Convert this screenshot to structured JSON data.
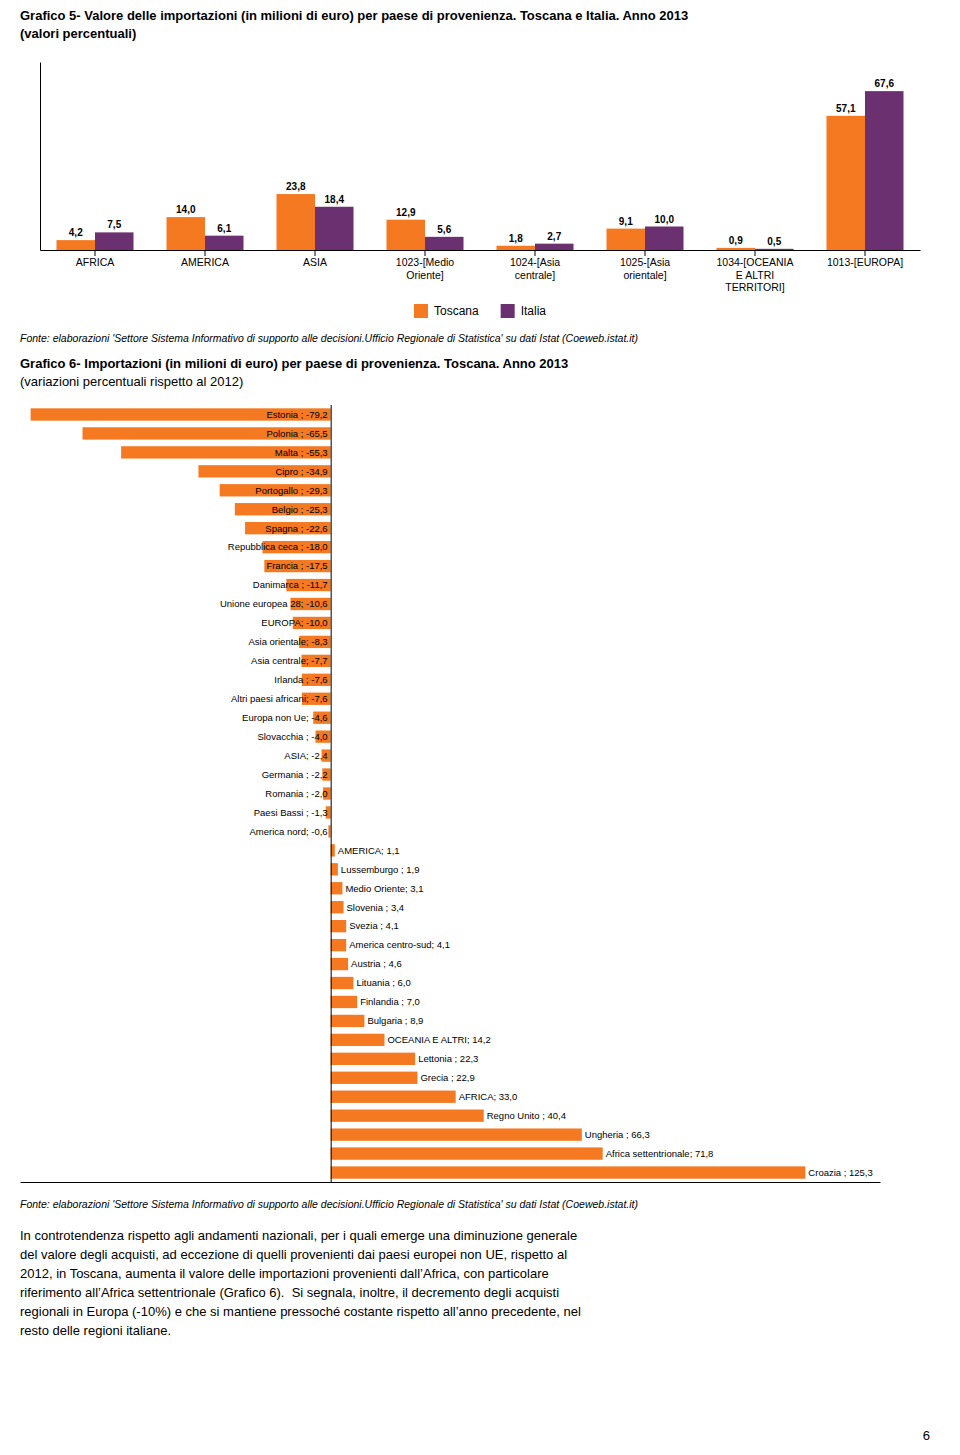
{
  "chart_data": [
    {
      "type": "bar",
      "title": "Grafico 5- Valore delle importazioni (in milioni di euro) per paese di provenienza. Toscana e Italia. Anno 2013",
      "subtitle": "(valori percentuali)",
      "categories": [
        "AFRICA",
        "AMERICA",
        "ASIA",
        "1023-[Medio\nOriente]",
        "1024-[Asia\ncentrale]",
        "1025-[Asia\norientale]",
        "1034-[OCEANIA\nE ALTRI\nTERRITORI]",
        "1013-[EUROPA]"
      ],
      "series": [
        {
          "name": "Toscana",
          "color": "#F47920",
          "values": [
            4.2,
            14.0,
            23.8,
            12.9,
            1.8,
            9.1,
            0.9,
            57.1
          ],
          "value_labels": [
            "4,2",
            "14,0",
            "23,8",
            "12,9",
            "1,8",
            "9,1",
            "0,9",
            "57,1"
          ]
        },
        {
          "name": "Italia",
          "color": "#6B3070",
          "values": [
            7.5,
            6.1,
            18.4,
            5.6,
            2.7,
            10.0,
            0.5,
            67.6
          ],
          "value_labels": [
            "7,5",
            "6,1",
            "18,4",
            "5,6",
            "2,7",
            "10,0",
            "0,5",
            "67,6"
          ]
        }
      ],
      "ylim": [
        0,
        80
      ],
      "tick_labels": "x",
      "data_labels": true,
      "legend": "bottom",
      "grid": false,
      "annotations": [
        "Fonte: elaborazioni 'Settore Sistema Informativo di supporto alle decisioni.Ufficio Regionale di Statistica' su dati Istat (Coeweb.istat.it)"
      ]
    },
    {
      "type": "bar",
      "orientation": "horizontal",
      "title": "Grafico 6- Importazioni (in milioni di euro) per paese di provenienza. Toscana. Anno 2013",
      "subtitle": "(variazioni percentuali rispetto al 2012)",
      "categories": [
        "Estonia ; -79,2",
        "Polonia ; -65,5",
        "Malta ; -55,3",
        "Cipro ; -34,9",
        "Portogallo ; -29,3",
        "Belgio ; -25,3",
        "Spagna ; -22,6",
        "Repubblica ceca ; -18,0",
        "Francia ; -17,5",
        "Danimarca ; -11,7",
        "Unione europea 28; -10,6",
        "EUROPA; -10,0",
        "Asia orientale; -8,3",
        "Asia centrale; -7,7",
        "Irlanda ; -7,6",
        "Altri paesi africani; -7,6",
        "Europa non Ue; -4,6",
        "Slovacchia ; -4,0",
        "ASIA; -2,4",
        "Germania ; -2,2",
        "Romania ; -2,0",
        "Paesi Bassi ; -1,3",
        "America nord; -0,6",
        "AMERICA; 1,1",
        "Lussemburgo ; 1,9",
        "Medio Oriente; 3,1",
        "Slovenia ; 3,4",
        "Svezia ; 4,1",
        "America centro-sud; 4,1",
        "Austria ; 4,6",
        "Lituania ; 6,0",
        "Finlandia ; 7,0",
        "Bulgaria ; 8,9",
        "OCEANIA E ALTRI; 14,2",
        "Lettonia ; 22,3",
        "Grecia ; 22,9",
        "AFRICA; 33,0",
        "Regno Unito ; 40,4",
        "Ungheria ; 66,3",
        "Africa settentrionale; 71,8",
        "Croazia ; 125,3"
      ],
      "values": [
        -79.2,
        -65.5,
        -55.3,
        -34.9,
        -29.3,
        -25.3,
        -22.6,
        -18.0,
        -17.5,
        -11.7,
        -10.6,
        -10.0,
        -8.3,
        -7.7,
        -7.6,
        -7.6,
        -4.6,
        -4.0,
        -2.4,
        -2.2,
        -2.0,
        -1.3,
        -0.6,
        1.1,
        1.9,
        3.1,
        3.4,
        4.1,
        4.1,
        4.6,
        6.0,
        7.0,
        8.9,
        14.2,
        22.3,
        22.9,
        33.0,
        40.4,
        66.3,
        71.8,
        125.3
      ],
      "color": "#F47920",
      "xlim": [
        -82,
        145
      ],
      "xticks": [
        0
      ],
      "tick_labels": false,
      "grid": false,
      "annotations": [
        "Fonte: elaborazioni 'Settore Sistema Informativo di supporto alle decisioni.Ufficio Regionale di Statistica' su dati Istat (Coeweb.istat.it)"
      ]
    }
  ],
  "body_text": [
    "In controtendenza rispetto agli andamenti nazionali, per i quali emerge una diminuzione generale",
    "del valore degli acquisti, ad eccezione di quelli provenienti dai paesi europei non UE, rispetto al",
    "2012, in Toscana, aumenta il valore delle importazioni provenienti dall’Africa, con particolare",
    "riferimento all’Africa settentrionale (Grafico 6).  Si segnala, inoltre, il decremento degli acquisti",
    "regionali in Europa (-10%) e che si mantiene pressoché costante rispetto all’anno precedente, nel",
    "resto delle regioni italiane."
  ],
  "page_number": "6"
}
